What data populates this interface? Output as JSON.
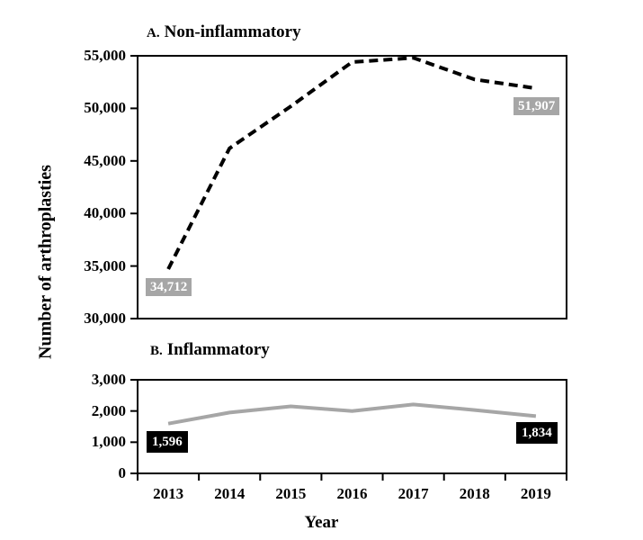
{
  "figure": {
    "y_axis_label": "Number of arthroplasties",
    "x_axis_label": "Year",
    "background": "#ffffff",
    "axis_color": "#000000"
  },
  "chart_data": [
    {
      "type": "line",
      "panel_letter": "A.",
      "title": "Non-inflammatory",
      "x_categories": [
        "2013",
        "2014",
        "2015",
        "2016",
        "2017",
        "2018",
        "2019"
      ],
      "values": [
        34712,
        46200,
        50200,
        54400,
        54800,
        52750,
        51907
      ],
      "ylim": [
        30000,
        55000
      ],
      "yticks": [
        {
          "value": 55000,
          "label": "55,000"
        },
        {
          "value": 50000,
          "label": "50,000"
        },
        {
          "value": 45000,
          "label": "45,000"
        },
        {
          "value": 40000,
          "label": "40,000"
        },
        {
          "value": 35000,
          "label": "35,000"
        },
        {
          "value": 30000,
          "label": "30,000"
        }
      ],
      "line": {
        "style": "dashed",
        "color": "#000000"
      },
      "annotations": [
        {
          "text": "34,712",
          "point": "first",
          "bg": "#a6a6a6",
          "fg": "#ffffff"
        },
        {
          "text": "51,907",
          "point": "last",
          "bg": "#a6a6a6",
          "fg": "#ffffff"
        }
      ],
      "grid": false,
      "legend": "none"
    },
    {
      "type": "line",
      "panel_letter": "B.",
      "title": "Inflammatory",
      "x_categories": [
        "2013",
        "2014",
        "2015",
        "2016",
        "2017",
        "2018",
        "2019"
      ],
      "values": [
        1596,
        1950,
        2150,
        2000,
        2210,
        2030,
        1834
      ],
      "ylim": [
        0,
        3000
      ],
      "yticks": [
        {
          "value": 3000,
          "label": "3,000"
        },
        {
          "value": 2000,
          "label": "2,000"
        },
        {
          "value": 1000,
          "label": "1,000"
        },
        {
          "value": 0,
          "label": "0"
        }
      ],
      "line": {
        "style": "solid",
        "color": "#a6a6a6"
      },
      "annotations": [
        {
          "text": "1,596",
          "point": "first",
          "bg": "#000000",
          "fg": "#ffffff"
        },
        {
          "text": "1,834",
          "point": "last",
          "bg": "#000000",
          "fg": "#ffffff"
        }
      ],
      "grid": false,
      "legend": "none"
    }
  ]
}
